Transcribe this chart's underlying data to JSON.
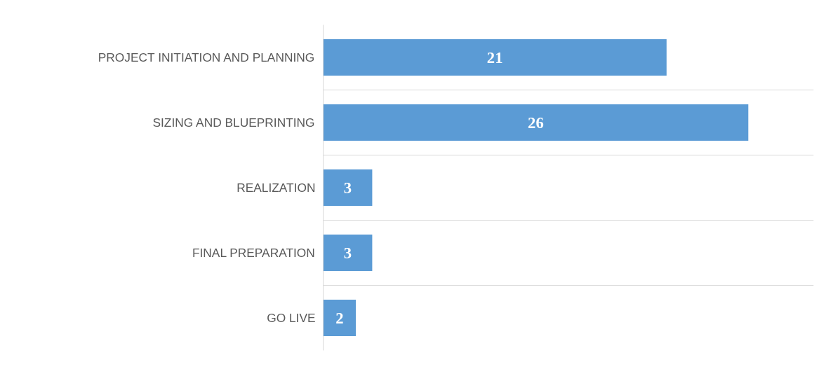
{
  "chart_data": {
    "type": "bar",
    "orientation": "horizontal",
    "categories": [
      "PROJECT INITIATION AND PLANNING",
      "SIZING AND BLUEPRINTING",
      "REALIZATION",
      "FINAL PREPARATION",
      "GO LIVE"
    ],
    "values": [
      21,
      26,
      3,
      3,
      2
    ],
    "color": "#5b9bd5",
    "xlim": [
      0,
      30
    ],
    "data_labels": true,
    "grid": "y",
    "tick_labels": "y"
  }
}
